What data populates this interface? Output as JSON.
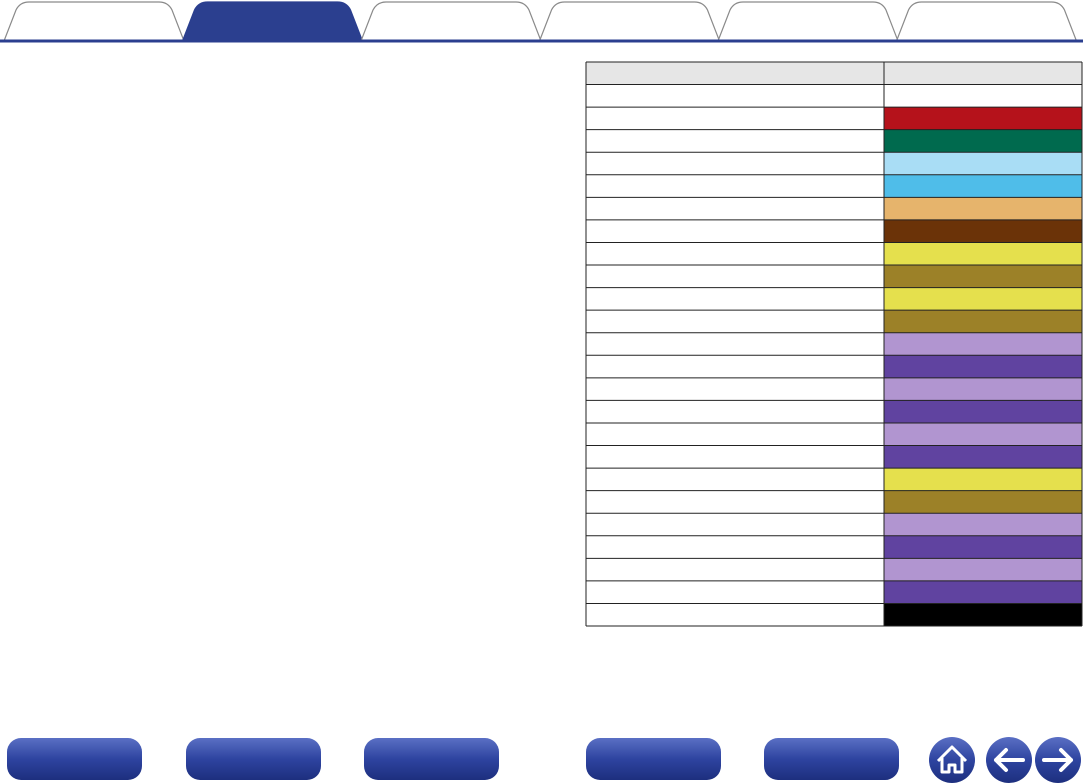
{
  "table": {
    "swatches": [
      "#ffffff",
      "#b5121b",
      "#006a4e",
      "#a9ddf5",
      "#4fbde9",
      "#e6b46c",
      "#6b3308",
      "#e5e04d",
      "#9c8128",
      "#e5e04d",
      "#9c8128",
      "#b195d0",
      "#6043a0",
      "#b195d0",
      "#6043a0",
      "#b195d0",
      "#6043a0",
      "#e5e04d",
      "#9c8128",
      "#b195d0",
      "#6043a0",
      "#b195d0",
      "#6043a0",
      "#000000"
    ]
  }
}
